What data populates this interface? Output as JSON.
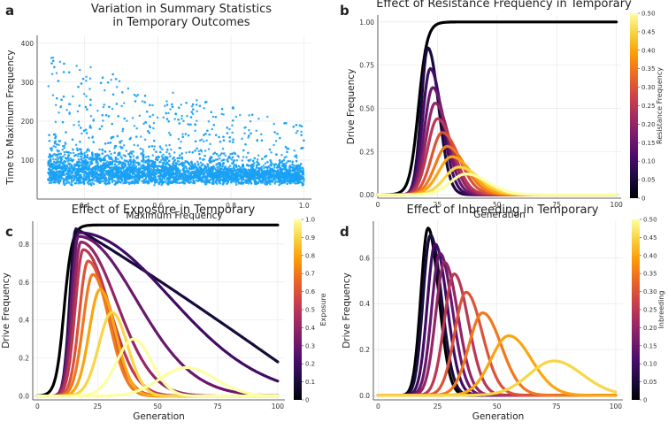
{
  "panel_labels": [
    "a",
    "b",
    "c",
    "d"
  ],
  "colormap": [
    "#000004",
    "#1b0c41",
    "#4a0c6b",
    "#781c6d",
    "#a52c60",
    "#cf4446",
    "#ed6925",
    "#fb9b06",
    "#f7d13d",
    "#fcffa4"
  ],
  "scatter_color": "#1aa1f5",
  "chart_data": [
    {
      "id": "a",
      "type": "scatter",
      "title": "Variation in Summary Statistics\nin Temporary Outcomes",
      "xlabel": "Maximum Frequency",
      "ylabel": "Time to Maximum Frequency",
      "xlim": [
        0.27,
        1.02
      ],
      "ylim": [
        0,
        420
      ],
      "xticks": [
        0.4,
        0.6,
        0.8,
        1.0
      ],
      "xtick_labels": [
        "0.4",
        "0.6",
        "0.8",
        "1.0"
      ],
      "yticks": [
        100,
        200,
        300,
        400
      ],
      "ytick_labels": [
        "100",
        "200",
        "300",
        "400"
      ],
      "grid": true,
      "n_points": 5200,
      "x_range": [
        0.3,
        1.0
      ],
      "y_min": 25,
      "y_max": 405,
      "note": "dense point cloud; time to maximum frequency concentrated at 30-120 and spread upward more at low maximum frequency"
    },
    {
      "id": "b",
      "type": "line",
      "title": "Effect of Resistance Frequency in Temporary",
      "xlabel": "Generation",
      "ylabel": "Drive Frequency",
      "xlim": [
        0,
        102
      ],
      "ylim": [
        -0.02,
        1.04
      ],
      "xticks": [
        0,
        25,
        50,
        75,
        100
      ],
      "xtick_labels": [
        "0",
        "25",
        "50",
        "75",
        "100"
      ],
      "yticks": [
        0,
        0.25,
        0.5,
        0.75,
        1.0
      ],
      "ytick_labels": [
        "0.00",
        "0.25",
        "0.50",
        "0.75",
        "1.00"
      ],
      "grid": true,
      "colorbar": {
        "label": "Resistance Frequency",
        "range": [
          0,
          0.5
        ],
        "ticks": [
          0,
          0.05,
          0.1,
          0.15,
          0.2,
          0.25,
          0.3,
          0.35,
          0.4,
          0.45,
          0.5
        ],
        "tick_labels": [
          "0",
          "0.05",
          "0.10",
          "0.15",
          "0.20",
          "0.25",
          "0.30",
          "0.35",
          "0.40",
          "0.45",
          "0.50"
        ]
      },
      "series": [
        {
          "param": 0.0,
          "kind": "sigmoid",
          "start": 0.0,
          "plateau": 1.0,
          "midpoint": 17,
          "rate": 0.55
        },
        {
          "param": 0.05,
          "kind": "peak",
          "start": 0.0,
          "peak": 0.85,
          "peak_x": 21,
          "rise_width": 2.8,
          "fall_width": 4.5
        },
        {
          "param": 0.1,
          "kind": "peak",
          "start": 0.0,
          "peak": 0.73,
          "peak_x": 22,
          "rise_width": 3.2,
          "fall_width": 5.0
        },
        {
          "param": 0.15,
          "kind": "peak",
          "start": 0.0,
          "peak": 0.62,
          "peak_x": 23,
          "rise_width": 3.5,
          "fall_width": 5.5
        },
        {
          "param": 0.2,
          "kind": "peak",
          "start": 0.0,
          "peak": 0.53,
          "peak_x": 24,
          "rise_width": 3.8,
          "fall_width": 6.0
        },
        {
          "param": 0.25,
          "kind": "peak",
          "start": 0.0,
          "peak": 0.44,
          "peak_x": 25,
          "rise_width": 4.1,
          "fall_width": 6.5
        },
        {
          "param": 0.3,
          "kind": "peak",
          "start": 0.0,
          "peak": 0.36,
          "peak_x": 27,
          "rise_width": 4.5,
          "fall_width": 7.0
        },
        {
          "param": 0.35,
          "kind": "peak",
          "start": 0.0,
          "peak": 0.28,
          "peak_x": 29,
          "rise_width": 5.0,
          "fall_width": 7.5
        },
        {
          "param": 0.4,
          "kind": "peak",
          "start": 0.0,
          "peak": 0.22,
          "peak_x": 31,
          "rise_width": 5.5,
          "fall_width": 8.0
        },
        {
          "param": 0.45,
          "kind": "peak",
          "start": 0.0,
          "peak": 0.16,
          "peak_x": 34,
          "rise_width": 6.0,
          "fall_width": 8.5
        },
        {
          "param": 0.5,
          "kind": "peak",
          "start": 0.0,
          "peak": 0.12,
          "peak_x": 37,
          "rise_width": 6.5,
          "fall_width": 9.0
        }
      ]
    },
    {
      "id": "c",
      "type": "line",
      "title": "Effect of Exposure in Temporary",
      "xlabel": "Generation",
      "ylabel": "Drive Frequency",
      "xlim": [
        -2,
        103
      ],
      "ylim": [
        -0.02,
        0.92
      ],
      "xticks": [
        0,
        25,
        50,
        75,
        100
      ],
      "xtick_labels": [
        "0",
        "25",
        "50",
        "75",
        "100"
      ],
      "yticks": [
        0,
        0.2,
        0.4,
        0.6,
        0.8
      ],
      "ytick_labels": [
        "0.0",
        "0.2",
        "0.4",
        "0.6",
        "0.8"
      ],
      "grid": true,
      "colorbar": {
        "label": "Exposure",
        "range": [
          0,
          1.0
        ],
        "ticks": [
          0,
          0.1,
          0.2,
          0.3,
          0.4,
          0.5,
          0.6,
          0.7,
          0.8,
          0.9,
          1.0
        ],
        "tick_labels": [
          "0",
          "0.1",
          "0.2",
          "0.3",
          "0.4",
          "0.5",
          "0.6",
          "0.7",
          "0.8",
          "0.9",
          "1.0"
        ]
      },
      "series": [
        {
          "param": 0.0,
          "kind": "sigmoid",
          "start": 0.0,
          "plateau": 0.9,
          "midpoint": 11,
          "rate": 0.6
        },
        {
          "param": 0.1,
          "kind": "peak",
          "start": 0.0,
          "peak": 0.88,
          "peak_x": 16,
          "rise_width": 2.5,
          "fall_width": 70,
          "tail_end": 0.18
        },
        {
          "param": 0.2,
          "kind": "peak",
          "start": 0.0,
          "peak": 0.86,
          "peak_x": 17,
          "rise_width": 2.7,
          "fall_width": 38
        },
        {
          "param": 0.3,
          "kind": "peak",
          "start": 0.0,
          "peak": 0.84,
          "peak_x": 17,
          "rise_width": 2.9,
          "fall_width": 24
        },
        {
          "param": 0.4,
          "kind": "peak",
          "start": 0.0,
          "peak": 0.81,
          "peak_x": 18,
          "rise_width": 3.1,
          "fall_width": 15
        },
        {
          "param": 0.5,
          "kind": "peak",
          "start": 0.0,
          "peak": 0.77,
          "peak_x": 19,
          "rise_width": 3.3,
          "fall_width": 11
        },
        {
          "param": 0.6,
          "kind": "peak",
          "start": 0.0,
          "peak": 0.71,
          "peak_x": 21,
          "rise_width": 3.6,
          "fall_width": 8.5
        },
        {
          "param": 0.7,
          "kind": "peak",
          "start": 0.0,
          "peak": 0.64,
          "peak_x": 23,
          "rise_width": 4.0,
          "fall_width": 7.0
        },
        {
          "param": 0.8,
          "kind": "peak",
          "start": 0.0,
          "peak": 0.56,
          "peak_x": 26,
          "rise_width": 4.5,
          "fall_width": 6.5
        },
        {
          "param": 0.9,
          "kind": "peak",
          "start": 0.0,
          "peak": 0.44,
          "peak_x": 31,
          "rise_width": 5.5,
          "fall_width": 6.5
        },
        {
          "param": 1.0,
          "kind": "peak",
          "start": 0.0,
          "peak": 0.3,
          "peak_x": 40,
          "rise_width": 7.0,
          "fall_width": 7.5
        },
        {
          "param": 1.0,
          "kind": "peak",
          "start": 0.0,
          "peak": 0.15,
          "peak_x": 62,
          "rise_width": 11,
          "fall_width": 12
        }
      ]
    },
    {
      "id": "d",
      "type": "line",
      "title": "Effect of Inbreeding in Temporary",
      "xlabel": "Generation",
      "ylabel": "Drive Frequency",
      "xlim": [
        -2,
        103
      ],
      "ylim": [
        -0.02,
        0.76
      ],
      "xticks": [
        0,
        25,
        50,
        75,
        100
      ],
      "xtick_labels": [
        "0",
        "25",
        "50",
        "75",
        "100"
      ],
      "yticks": [
        0,
        0.2,
        0.4,
        0.6
      ],
      "ytick_labels": [
        "0.0",
        "0.2",
        "0.4",
        "0.6"
      ],
      "grid": true,
      "colorbar": {
        "label": "Inbreeding",
        "range": [
          0,
          0.5
        ],
        "ticks": [
          0,
          0.05,
          0.1,
          0.15,
          0.2,
          0.25,
          0.3,
          0.35,
          0.4,
          0.45,
          0.5
        ],
        "tick_labels": [
          "0",
          "0.05",
          "0.10",
          "0.15",
          "0.20",
          "0.25",
          "0.30",
          "0.35",
          "0.40",
          "0.45",
          "0.50"
        ]
      },
      "series": [
        {
          "param": 0.0,
          "kind": "peak",
          "start": 0.0,
          "peak": 0.73,
          "peak_x": 21,
          "rise_width": 3.0,
          "fall_width": 4.5
        },
        {
          "param": 0.05,
          "kind": "peak",
          "start": 0.0,
          "peak": 0.7,
          "peak_x": 22,
          "rise_width": 3.1,
          "fall_width": 4.7
        },
        {
          "param": 0.1,
          "kind": "peak",
          "start": 0.0,
          "peak": 0.66,
          "peak_x": 24,
          "rise_width": 3.3,
          "fall_width": 5.0
        },
        {
          "param": 0.15,
          "kind": "peak",
          "start": 0.0,
          "peak": 0.62,
          "peak_x": 26,
          "rise_width": 3.5,
          "fall_width": 5.3
        },
        {
          "param": 0.2,
          "kind": "peak",
          "start": 0.0,
          "peak": 0.58,
          "peak_x": 28,
          "rise_width": 3.8,
          "fall_width": 5.6
        },
        {
          "param": 0.25,
          "kind": "peak",
          "start": 0.0,
          "peak": 0.53,
          "peak_x": 32,
          "rise_width": 4.2,
          "fall_width": 6.0
        },
        {
          "param": 0.3,
          "kind": "peak",
          "start": 0.0,
          "peak": 0.45,
          "peak_x": 37,
          "rise_width": 4.8,
          "fall_width": 6.8
        },
        {
          "param": 0.35,
          "kind": "peak",
          "start": 0.0,
          "peak": 0.36,
          "peak_x": 44,
          "rise_width": 5.8,
          "fall_width": 7.8
        },
        {
          "param": 0.4,
          "kind": "peak",
          "start": 0.0,
          "peak": 0.26,
          "peak_x": 55,
          "rise_width": 7.5,
          "fall_width": 9.5
        },
        {
          "param": 0.45,
          "kind": "peak",
          "start": 0.0,
          "peak": 0.15,
          "peak_x": 74,
          "rise_width": 10.5,
          "fall_width": 12
        }
      ]
    }
  ]
}
